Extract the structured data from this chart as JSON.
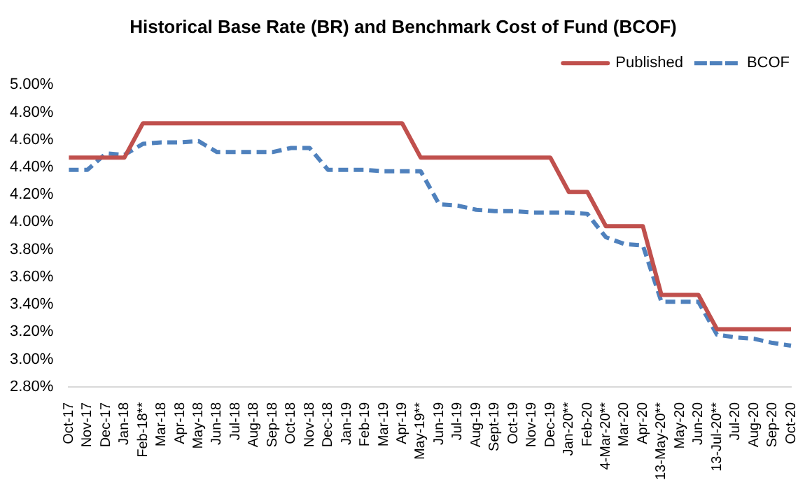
{
  "chart_data": {
    "type": "line",
    "title": "Historical Base Rate (BR) and Benchmark Cost of Fund (BCOF)",
    "categories": [
      "Oct-17",
      "Nov-17",
      "Dec-17",
      "Jan-18",
      "Feb-18**",
      "Mar-18",
      "Apr-18",
      "May-18",
      "Jun-18",
      "Jul-18",
      "Aug-18",
      "Sep-18",
      "Oct-18",
      "Nov-18",
      "Dec-18",
      "Jan-19",
      "Feb-19",
      "Mar-19",
      "Apr-19",
      "May-19**",
      "Jun-19",
      "Jul-19",
      "Aug-19",
      "Sept-19",
      "Oct-19",
      "Nov-19",
      "Dec-19",
      "Jan-20**",
      "Feb-20",
      "4-Mar-20**",
      "Mar-20",
      "Apr-20",
      "13-May-20**",
      "May-20",
      "Jun-20",
      "13-Jul-20**",
      "Jul-20",
      "Aug-20",
      "Sep-20",
      "Oct-20"
    ],
    "series": [
      {
        "name": "Published",
        "color": "#c0504d",
        "line_style": "solid",
        "values": [
          4.47,
          4.47,
          4.47,
          4.47,
          4.72,
          4.72,
          4.72,
          4.72,
          4.72,
          4.72,
          4.72,
          4.72,
          4.72,
          4.72,
          4.72,
          4.72,
          4.72,
          4.72,
          4.72,
          4.47,
          4.47,
          4.47,
          4.47,
          4.47,
          4.47,
          4.47,
          4.47,
          4.22,
          4.22,
          3.97,
          3.97,
          3.97,
          3.47,
          3.47,
          3.47,
          3.22,
          3.22,
          3.22,
          3.22,
          3.22
        ]
      },
      {
        "name": "BCOF",
        "color": "#4f81bd",
        "line_style": "dashed",
        "values": [
          4.38,
          4.38,
          4.5,
          4.49,
          4.57,
          4.58,
          4.58,
          4.59,
          4.51,
          4.51,
          4.51,
          4.51,
          4.54,
          4.54,
          4.38,
          4.38,
          4.38,
          4.37,
          4.37,
          4.37,
          4.13,
          4.12,
          4.09,
          4.08,
          4.08,
          4.07,
          4.07,
          4.07,
          4.06,
          3.89,
          3.84,
          3.83,
          3.42,
          3.42,
          3.42,
          3.18,
          3.16,
          3.15,
          3.12,
          3.1
        ]
      }
    ],
    "ylim": [
      2.8,
      5.0
    ],
    "yticks": [
      {
        "value": 2.8,
        "label": "2.80%"
      },
      {
        "value": 3.0,
        "label": "3.00%"
      },
      {
        "value": 3.2,
        "label": "3.20%"
      },
      {
        "value": 3.4,
        "label": "3.40%"
      },
      {
        "value": 3.6,
        "label": "3.60%"
      },
      {
        "value": 3.8,
        "label": "3.80%"
      },
      {
        "value": 4.0,
        "label": "4.00%"
      },
      {
        "value": 4.2,
        "label": "4.20%"
      },
      {
        "value": 4.4,
        "label": "4.40%"
      },
      {
        "value": 4.6,
        "label": "4.60%"
      },
      {
        "value": 4.8,
        "label": "4.80%"
      },
      {
        "value": 5.0,
        "label": "5.00%"
      }
    ],
    "grid": false,
    "legend": "top right",
    "marker": "none"
  }
}
